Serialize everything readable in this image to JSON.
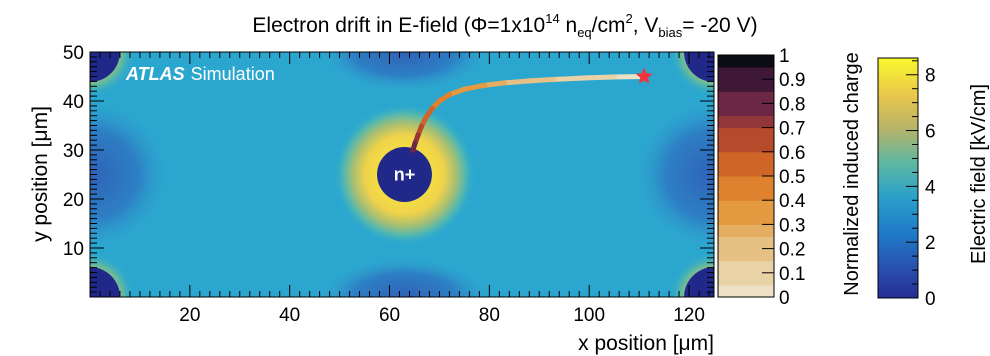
{
  "title": {
    "pre": "Electron drift in E-field (Φ=1x10",
    "exp": "14",
    "unit_a": " n",
    "unit_a_sub": "eq",
    "unit_b": "/cm",
    "unit_b_sup": "2",
    "mid": ", V",
    "mid_sub": "bias",
    "post": "= -20 V)"
  },
  "label_atlas": "ATLAS",
  "label_sim": "Simulation",
  "implant_label": "n+",
  "chart_data": {
    "type": "heatmap",
    "xlabel": "x position [μm]",
    "ylabel": "y position [μm]",
    "xlim": [
      0,
      125
    ],
    "ylim": [
      0,
      50
    ],
    "xticks": [
      20,
      40,
      60,
      80,
      100,
      120
    ],
    "yticks": [
      10,
      20,
      30,
      40,
      50
    ],
    "implant": {
      "x": 63,
      "y": 25,
      "r": 5.5
    },
    "corner_implants": [
      [
        0,
        0
      ],
      [
        0,
        50
      ],
      [
        125,
        0
      ],
      [
        125,
        50
      ]
    ],
    "start_marker": {
      "x": 111,
      "y": 45
    },
    "trajectory": [
      {
        "x": 111.0,
        "y": 45.0,
        "q": 0.0
      },
      {
        "x": 105.0,
        "y": 44.9,
        "q": 0.05
      },
      {
        "x": 99.0,
        "y": 44.7,
        "q": 0.1
      },
      {
        "x": 93.0,
        "y": 44.4,
        "q": 0.15
      },
      {
        "x": 88.0,
        "y": 44.1,
        "q": 0.2
      },
      {
        "x": 83.0,
        "y": 43.7,
        "q": 0.25
      },
      {
        "x": 79.0,
        "y": 43.2,
        "q": 0.3
      },
      {
        "x": 75.0,
        "y": 42.4,
        "q": 0.35
      },
      {
        "x": 72.0,
        "y": 41.3,
        "q": 0.4
      },
      {
        "x": 70.0,
        "y": 40.0,
        "q": 0.45
      },
      {
        "x": 68.5,
        "y": 38.4,
        "q": 0.5
      },
      {
        "x": 67.3,
        "y": 36.6,
        "q": 0.55
      },
      {
        "x": 66.4,
        "y": 34.8,
        "q": 0.62
      },
      {
        "x": 65.7,
        "y": 33.0,
        "q": 0.7
      },
      {
        "x": 65.1,
        "y": 31.3,
        "q": 0.8
      },
      {
        "x": 64.7,
        "y": 30.0,
        "q": 0.9
      }
    ],
    "charge_scale": {
      "label": "Normalized induced charge",
      "range": [
        0,
        1
      ],
      "ticks": [
        "0",
        "0.1",
        "0.2",
        "0.3",
        "0.4",
        "0.5",
        "0.6",
        "0.7",
        "0.8",
        "0.9",
        "1"
      ]
    },
    "field_scale": {
      "label": "Electric field [kV/cm]",
      "range": [
        0,
        8.6
      ],
      "ticks": [
        "0",
        "2",
        "4",
        "6",
        "8"
      ],
      "tick_values": [
        0,
        2,
        4,
        6,
        8
      ]
    }
  }
}
